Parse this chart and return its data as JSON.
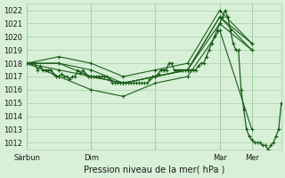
{
  "title": "Pression niveau de la mer( hPa )",
  "ylabel_ticks": [
    1012,
    1013,
    1014,
    1015,
    1016,
    1017,
    1018,
    1019,
    1020,
    1021,
    1022
  ],
  "ylim": [
    1011.5,
    1022.5
  ],
  "xlim": [
    0,
    95
  ],
  "xtick_positions": [
    0,
    24,
    48,
    72,
    84
  ],
  "xtick_labels": [
    "Sàrbun",
    "Dim",
    "",
    "Mar",
    "Mer"
  ],
  "bg_color": "#d8f0d8",
  "grid_color": "#aad0aa",
  "line_color": "#1a5e1a",
  "figsize": [
    3.2,
    2.0
  ],
  "dpi": 100,
  "main_x": [
    0,
    1,
    2,
    3,
    4,
    5,
    6,
    7,
    8,
    9,
    10,
    11,
    12,
    13,
    14,
    15,
    16,
    17,
    18,
    19,
    20,
    21,
    22,
    23,
    24,
    25,
    26,
    27,
    28,
    29,
    30,
    31,
    32,
    33,
    34,
    35,
    36,
    37,
    38,
    39,
    40,
    41,
    42,
    43,
    44,
    45,
    46,
    47,
    48,
    49,
    50,
    51,
    52,
    53,
    54,
    55,
    56,
    57,
    58,
    59,
    60,
    61,
    62,
    63,
    64,
    65,
    66,
    67,
    68,
    69,
    70,
    71,
    72,
    73,
    74,
    75,
    76,
    77,
    78,
    79,
    80,
    81,
    82,
    83,
    84,
    85,
    86,
    87,
    88,
    89,
    90,
    91,
    92,
    93,
    94,
    95
  ],
  "main_y": [
    1018.0,
    1018.0,
    1018.0,
    1018.0,
    1017.5,
    1017.8,
    1017.5,
    1017.5,
    1017.5,
    1017.5,
    1017.2,
    1017.0,
    1017.0,
    1017.2,
    1017.0,
    1017.0,
    1016.8,
    1017.0,
    1017.0,
    1017.5,
    1017.3,
    1017.5,
    1017.2,
    1017.0,
    1017.0,
    1017.0,
    1017.0,
    1017.0,
    1017.0,
    1017.0,
    1017.0,
    1016.8,
    1016.5,
    1016.5,
    1016.5,
    1016.5,
    1016.5,
    1016.5,
    1016.5,
    1016.5,
    1016.5,
    1016.5,
    1016.5,
    1016.5,
    1016.5,
    1016.5,
    1016.8,
    1017.0,
    1017.0,
    1017.2,
    1017.5,
    1017.5,
    1017.5,
    1018.0,
    1018.0,
    1017.5,
    1017.5,
    1017.5,
    1017.5,
    1017.5,
    1017.5,
    1017.5,
    1017.5,
    1017.5,
    1017.8,
    1018.0,
    1018.0,
    1018.5,
    1019.0,
    1019.5,
    1020.0,
    1020.5,
    1021.0,
    1021.5,
    1022.0,
    1021.5,
    1020.5,
    1019.5,
    1019.0,
    1019.0,
    1016.0,
    1014.5,
    1013.0,
    1012.5,
    1012.2,
    1012.0,
    1012.0,
    1012.0,
    1011.8,
    1011.8,
    1011.5,
    1011.8,
    1012.0,
    1012.5,
    1013.0,
    1015.0
  ],
  "forecast_series": [
    {
      "x": [
        0,
        12,
        24,
        36,
        48,
        60,
        72,
        84
      ],
      "y": [
        1018.0,
        1018.0,
        1017.0,
        1016.5,
        1017.0,
        1017.5,
        1021.5,
        1019.5
      ]
    },
    {
      "x": [
        0,
        12,
        24,
        36,
        48,
        60,
        72,
        84
      ],
      "y": [
        1018.0,
        1017.5,
        1017.0,
        1016.5,
        1017.0,
        1017.5,
        1021.0,
        1019.0
      ]
    },
    {
      "x": [
        0,
        12,
        24,
        36,
        48,
        60,
        72,
        84
      ],
      "y": [
        1018.0,
        1018.5,
        1018.0,
        1017.0,
        1017.5,
        1018.0,
        1022.0,
        1019.5
      ]
    },
    {
      "x": [
        0,
        12,
        24,
        36,
        48,
        60,
        72,
        84
      ],
      "y": [
        1018.0,
        1018.0,
        1017.5,
        1016.5,
        1017.0,
        1017.5,
        1021.5,
        1019.0
      ]
    },
    {
      "x": [
        0,
        12,
        24,
        36,
        48,
        60,
        72,
        84
      ],
      "y": [
        1018.0,
        1017.0,
        1016.0,
        1015.5,
        1016.5,
        1017.0,
        1020.5,
        1013.0
      ]
    }
  ]
}
